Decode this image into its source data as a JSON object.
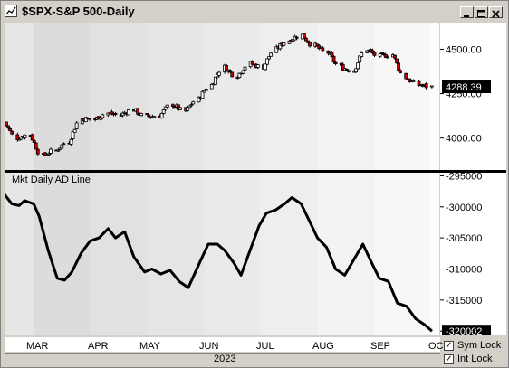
{
  "window": {
    "title": "$SPX-S&P 500-Daily",
    "min_label": "_",
    "max_label": "□",
    "close_label": "×"
  },
  "price_panel": {
    "y_ticks": [
      "4500.00",
      "4250.00",
      "4000.00"
    ],
    "last_value": "4288.39",
    "colors": {
      "up": "#ffffff",
      "down": "#cc0000",
      "outline": "#000000"
    }
  },
  "ad_panel": {
    "title": "Mkt Daily AD Line",
    "y_ticks": [
      "-295000",
      "-300000",
      "-305000",
      "-310000",
      "-315000",
      "-320000"
    ],
    "last_value": "-320002"
  },
  "x_axis": {
    "months": [
      "MAR",
      "APR",
      "MAY",
      "JUN",
      "JUL",
      "AUG",
      "SEP",
      "OC"
    ],
    "year": "2023"
  },
  "controls": {
    "sym_lock": {
      "label": "Sym Lock",
      "checked": true
    },
    "int_lock": {
      "label": "Int Lock",
      "checked": true
    }
  },
  "chart_data": [
    {
      "type": "line",
      "subtype": "candlestick",
      "title": "$SPX-S&P 500-Daily",
      "ylim": [
        3820,
        4650
      ],
      "x_range": [
        "2023-02-13",
        "2023-10-06"
      ],
      "series": [
        {
          "x": [
            "2023-02-13",
            "2023-02-20",
            "2023-02-27",
            "2023-03-06",
            "2023-03-13",
            "2023-03-20",
            "2023-03-27",
            "2023-04-03",
            "2023-04-10",
            "2023-04-17",
            "2023-04-24",
            "2023-05-01",
            "2023-05-08",
            "2023-05-15",
            "2023-05-22",
            "2023-05-29",
            "2023-06-05",
            "2023-06-12",
            "2023-06-19",
            "2023-06-26",
            "2023-07-03",
            "2023-07-10",
            "2023-07-17",
            "2023-07-24",
            "2023-07-31",
            "2023-08-07",
            "2023-08-14",
            "2023-08-21",
            "2023-08-28",
            "2023-09-04",
            "2023-09-11",
            "2023-09-18",
            "2023-09-25",
            "2023-10-02"
          ],
          "values": [
            4090,
            4000,
            4020,
            3900,
            3930,
            3980,
            4110,
            4105,
            4140,
            4130,
            4160,
            4120,
            4125,
            4190,
            4150,
            4220,
            4300,
            4400,
            4350,
            4420,
            4400,
            4500,
            4550,
            4580,
            4520,
            4480,
            4400,
            4380,
            4500,
            4460,
            4470,
            4340,
            4300,
            4288.39
          ]
        }
      ]
    },
    {
      "type": "line",
      "title": "Mkt Daily AD Line",
      "ylim": [
        -320700,
        -294500
      ],
      "x_range": [
        "2023-02-13",
        "2023-10-06"
      ],
      "series": [
        {
          "x": [
            "2023-02-13",
            "2023-02-17",
            "2023-02-21",
            "2023-02-24",
            "2023-03-01",
            "2023-03-04",
            "2023-03-09",
            "2023-03-14",
            "2023-03-18",
            "2023-03-22",
            "2023-03-27",
            "2023-04-01",
            "2023-04-06",
            "2023-04-11",
            "2023-04-15",
            "2023-04-20",
            "2023-04-25",
            "2023-05-01",
            "2023-05-05",
            "2023-05-10",
            "2023-05-15",
            "2023-05-20",
            "2023-05-25",
            "2023-06-01",
            "2023-06-05",
            "2023-06-10",
            "2023-06-14",
            "2023-06-19",
            "2023-06-23",
            "2023-06-28",
            "2023-07-03",
            "2023-07-07",
            "2023-07-12",
            "2023-07-17",
            "2023-07-21",
            "2023-07-26",
            "2023-07-31",
            "2023-08-04",
            "2023-08-09",
            "2023-08-14",
            "2023-08-19",
            "2023-08-24",
            "2023-08-29",
            "2023-09-02",
            "2023-09-07",
            "2023-09-12",
            "2023-09-17",
            "2023-09-22",
            "2023-09-27",
            "2023-10-02",
            "2023-10-06"
          ],
          "values": [
            -298000,
            -299500,
            -299800,
            -299000,
            -299500,
            -301500,
            -307000,
            -311500,
            -311800,
            -310500,
            -307500,
            -305500,
            -305000,
            -303500,
            -305000,
            -304000,
            -308000,
            -310500,
            -310000,
            -310800,
            -310200,
            -312000,
            -313000,
            -308500,
            -306000,
            -306000,
            -307000,
            -309000,
            -311000,
            -307000,
            -303000,
            -301000,
            -300500,
            -299500,
            -298500,
            -299500,
            -302500,
            -305000,
            -306500,
            -310000,
            -311000,
            -308500,
            -306000,
            -308500,
            -311500,
            -312000,
            -315500,
            -316000,
            -318000,
            -319000,
            -320002
          ]
        }
      ]
    }
  ]
}
